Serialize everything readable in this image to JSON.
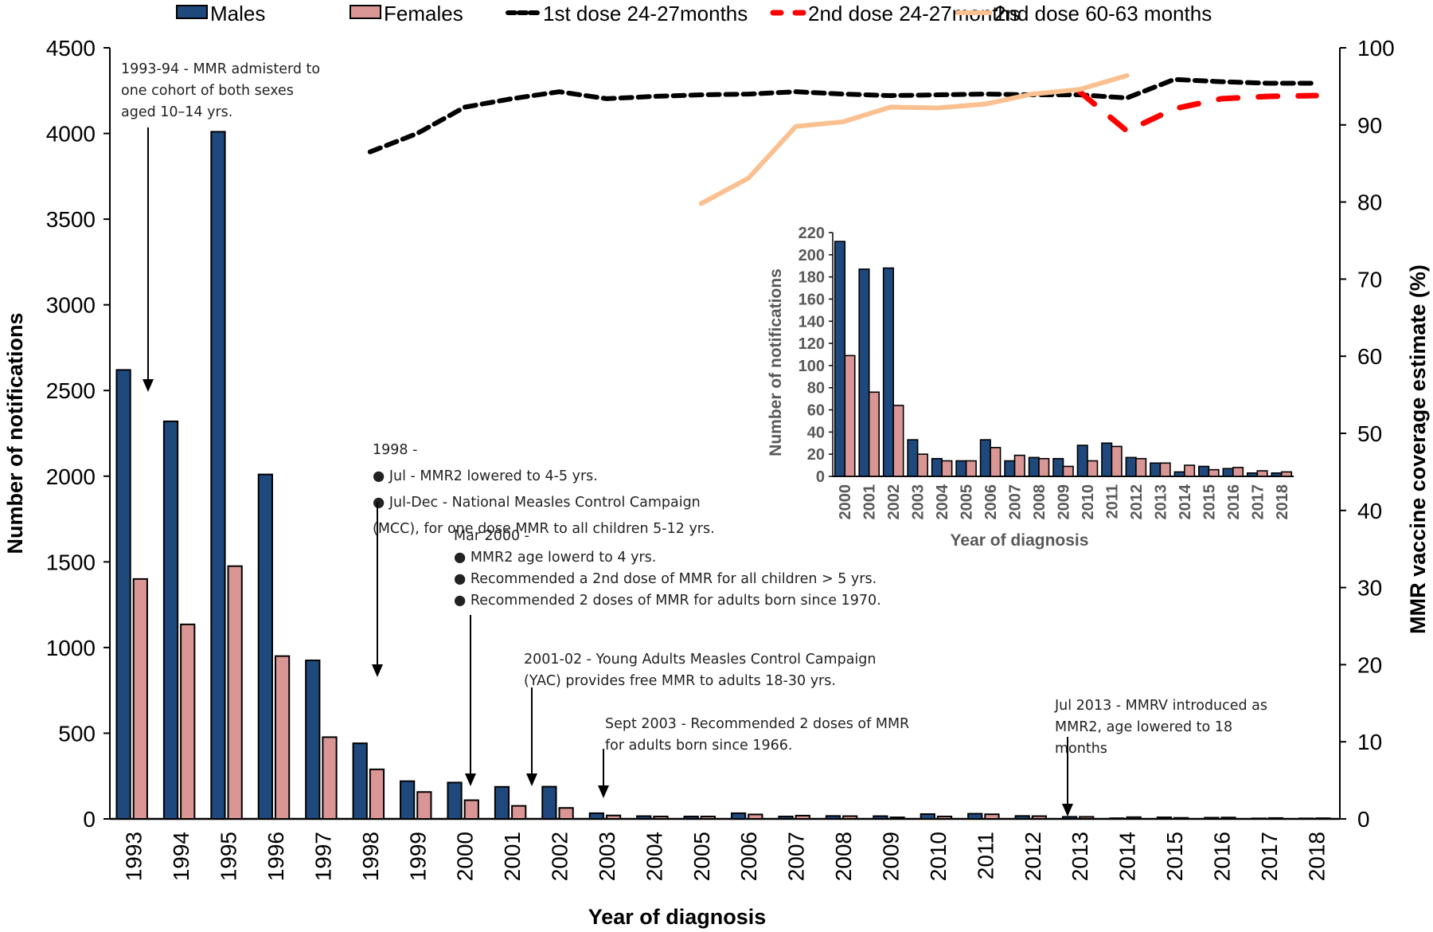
{
  "chart_data": {
    "type": "bar",
    "years": [
      "1993",
      "1994",
      "1995",
      "1996",
      "1997",
      "1998",
      "1999",
      "2000",
      "2001",
      "2002",
      "2003",
      "2004",
      "2005",
      "2006",
      "2007",
      "2008",
      "2009",
      "2010",
      "2011",
      "2012",
      "2013",
      "2014",
      "2015",
      "2016",
      "2017",
      "2018"
    ],
    "xlabel": "Year of diagnosis",
    "ylabel_left": "Number of  notifications",
    "ylabel_right": "MMR vaccine coverage estimate (%)",
    "ylim_left": [
      0,
      4500
    ],
    "yticks_left": [
      0,
      500,
      1000,
      1500,
      2000,
      2500,
      3000,
      3500,
      4000,
      4500
    ],
    "ylim_right": [
      0,
      100
    ],
    "yticks_right": [
      0,
      10,
      20,
      30,
      40,
      50,
      60,
      70,
      80,
      90,
      100
    ],
    "grid": false,
    "legend_position": "top",
    "bar_series": [
      {
        "name": "Males",
        "color": "#1f497d",
        "values": [
          2620,
          2320,
          4010,
          2010,
          925,
          441,
          220,
          212,
          187,
          188,
          33,
          16,
          14,
          33,
          14,
          17,
          16,
          28,
          30,
          17,
          12,
          4,
          9,
          7,
          3,
          3
        ]
      },
      {
        "name": "Females",
        "color": "#d99694",
        "values": [
          1400,
          1135,
          1475,
          950,
          477,
          289,
          157,
          109,
          76,
          64,
          20,
          14,
          14,
          26,
          19,
          16,
          9,
          14,
          27,
          16,
          12,
          10,
          6,
          8,
          5,
          4
        ]
      }
    ],
    "line_series": [
      {
        "name": "1st dose 24-27months",
        "color": "#000000",
        "style": "dashed",
        "values": [
          null,
          null,
          null,
          null,
          null,
          86.5,
          88.9,
          92.3,
          93.4,
          94.3,
          93.4,
          93.7,
          93.9,
          94.0,
          94.3,
          94.0,
          93.8,
          93.9,
          94.0,
          93.9,
          93.9,
          93.5,
          95.9,
          95.6,
          95.4,
          95.4
        ]
      },
      {
        "name": "2nd dose 24-27months",
        "color": "#ff0000",
        "style": "dashed-long",
        "values": [
          null,
          null,
          null,
          null,
          null,
          null,
          null,
          null,
          null,
          null,
          null,
          null,
          null,
          null,
          null,
          null,
          null,
          null,
          null,
          null,
          94.3,
          89.2,
          92.1,
          93.4,
          93.7,
          93.8
        ]
      },
      {
        "name": "2nd dose 60-63 months",
        "color": "#fac090",
        "style": "solid",
        "values": [
          null,
          null,
          null,
          null,
          null,
          null,
          null,
          null,
          null,
          null,
          null,
          null,
          79.8,
          83.1,
          89.8,
          90.4,
          92.3,
          92.2,
          92.7,
          94.0,
          94.6,
          96.4,
          null,
          null,
          null,
          null
        ]
      }
    ],
    "inset": {
      "type": "bar",
      "years": [
        "2000",
        "2001",
        "2002",
        "2003",
        "2004",
        "2005",
        "2006",
        "2007",
        "2008",
        "2009",
        "2010",
        "2011",
        "2012",
        "2013",
        "2014",
        "2015",
        "2016",
        "2017",
        "2018"
      ],
      "xlabel": "Year of diagnosis",
      "ylabel": "Number of notifications",
      "ylim": [
        0,
        220
      ],
      "yticks": [
        0,
        20,
        40,
        60,
        80,
        100,
        120,
        140,
        160,
        180,
        200,
        220
      ],
      "males": [
        212,
        187,
        188,
        33,
        16,
        14,
        33,
        14,
        17,
        16,
        28,
        30,
        17,
        12,
        4,
        9,
        7,
        3,
        3
      ],
      "females": [
        109,
        76,
        64,
        20,
        14,
        14,
        26,
        19,
        16,
        9,
        14,
        27,
        16,
        12,
        10,
        6,
        8,
        5,
        4
      ]
    },
    "annotations": [
      {
        "id": "a1993",
        "year": "1993",
        "lines": [
          "1993-94 - MMR admisterd to",
          "one cohort of both sexes",
          "aged 10–14 yrs."
        ]
      },
      {
        "id": "a1998",
        "year": "1998",
        "lines": [
          "1998 -",
          "●  Jul - MMR2  lowered to 4-5 yrs.",
          "●  Jul-Dec - National Measles Control Campaign",
          "(MCC), for one dose MMR to all children 5-12 yrs."
        ]
      },
      {
        "id": "a2000",
        "year": "2000",
        "lines": [
          "Mar 2000 -",
          "● MMR2 age lowerd to 4 yrs.",
          "● Recommended a 2nd dose of MMR for all children > 5 yrs.",
          "● Recommended 2 doses of MMR for adults born since 1970."
        ]
      },
      {
        "id": "a2001",
        "year": "2001-02",
        "lines": [
          "2001-02 - Young Adults Measles Control Campaign",
          "(YAC) provides free MMR to adults 18-30 yrs."
        ]
      },
      {
        "id": "a2003",
        "year": "2003",
        "lines": [
          "Sept 2003 -  Recommended 2 doses of MMR",
          "for adults born since 1966."
        ]
      },
      {
        "id": "a2013",
        "year": "2013",
        "lines": [
          "Jul 2013 -  MMRV introduced as",
          "MMR2, age lowered to 18",
          "months"
        ]
      }
    ]
  }
}
